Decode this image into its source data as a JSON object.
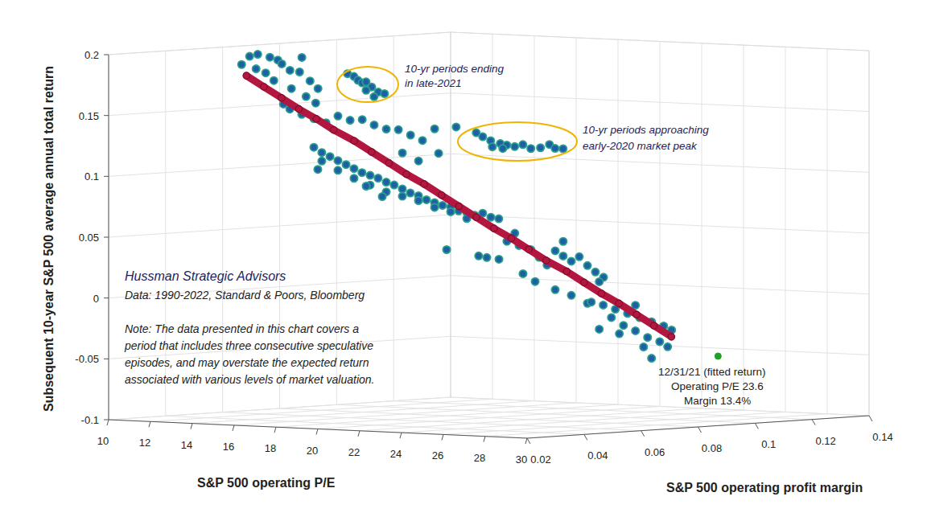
{
  "chart_data": {
    "type": "scatter3d",
    "x_label": "S&P 500 operating P/E",
    "y_label": "Subsequent 10-year S&P 500 average annual total return",
    "z_label": "S&P 500 operating profit margin",
    "xlim": [
      10,
      30
    ],
    "xticks": [
      10,
      12,
      14,
      16,
      18,
      20,
      22,
      24,
      26,
      28,
      30
    ],
    "ylim": [
      -0.1,
      0.2
    ],
    "yticks": [
      -0.1,
      -0.05,
      0,
      0.05,
      0.1,
      0.15,
      0.2
    ],
    "zlim": [
      0.02,
      0.14
    ],
    "zticks": [
      0.02,
      0.04,
      0.06,
      0.08,
      0.1,
      0.12,
      0.14
    ],
    "grid": true,
    "series": [
      {
        "type": "scatter",
        "color": "#1f5fa8",
        "marker": "circle",
        "x": [
          12.65,
          13.04,
          13.62,
          14.0,
          12.96,
          13.42,
          14.19,
          14.58,
          15.04,
          15.54,
          15.92,
          13.81,
          14.65,
          15.35,
          15.81,
          14.27,
          15.15,
          12.27,
          11.88,
          12.19,
          12.38,
          12.58,
          12.77,
          13.04,
          13.35,
          13.65,
          13.15,
          12.77,
          14.35,
          15.31,
          15.62,
          16.0,
          16.46,
          16.77,
          17.15,
          17.54,
          17.92,
          18.38,
          18.81,
          19.08,
          19.46,
          16.08,
          16.58,
          11.85,
          12.42,
          13.0,
          13.58,
          14.15,
          14.73,
          15.31,
          15.88,
          16.46,
          17.04,
          17.62,
          18.19,
          18.77,
          18.96,
          18.0,
          17.23,
          14.36,
          14.74,
          15.13,
          15.51,
          15.9,
          16.28,
          16.66,
          17.05,
          17.43,
          17.82,
          18.2,
          18.59,
          18.97,
          19.36,
          19.74,
          20.13,
          20.51,
          20.9,
          21.28,
          21.67,
          22.05,
          22.43,
          22.82,
          23.2,
          14.74,
          15.51,
          16.28,
          17.05,
          17.82,
          18.59,
          19.36,
          20.13,
          20.9,
          21.67,
          16.86,
          17.63,
          14.55,
          18.15,
          18.54,
          19.12,
          19.5,
          20.08,
          20.65,
          21.04,
          21.42,
          21.81,
          22.19,
          22.58,
          22.96,
          23.35,
          23.73,
          24.12,
          20.27,
          20.85,
          21.81,
          22.58,
          23.35,
          22.19,
          16.62,
          19.88,
          20.81,
          21.38,
          21.96,
          22.54,
          23.12,
          23.69,
          24.27,
          24.65,
          21.77,
          22.35,
          22.92,
          23.5,
          24.08,
          24.46,
          21.19,
          23.31,
          23.69,
          22.15,
          21.19,
          22.92
        ],
        "z": [
          0.05,
          0.05,
          0.05,
          0.05,
          0.05,
          0.05,
          0.05,
          0.05,
          0.05,
          0.05,
          0.05,
          0.05,
          0.05,
          0.05,
          0.05,
          0.05,
          0.05,
          0.05,
          0.09,
          0.09,
          0.09,
          0.09,
          0.09,
          0.09,
          0.09,
          0.09,
          0.09,
          0.09,
          0.11,
          0.11,
          0.11,
          0.11,
          0.11,
          0.11,
          0.11,
          0.11,
          0.11,
          0.11,
          0.11,
          0.11,
          0.11,
          0.11,
          0.11,
          0.07,
          0.07,
          0.07,
          0.07,
          0.07,
          0.07,
          0.07,
          0.07,
          0.07,
          0.07,
          0.07,
          0.07,
          0.07,
          0.07,
          0.07,
          0.07,
          0.06,
          0.06,
          0.06,
          0.06,
          0.06,
          0.06,
          0.06,
          0.06,
          0.06,
          0.06,
          0.06,
          0.06,
          0.06,
          0.06,
          0.06,
          0.06,
          0.06,
          0.06,
          0.06,
          0.06,
          0.06,
          0.06,
          0.06,
          0.06,
          0.06,
          0.06,
          0.06,
          0.06,
          0.06,
          0.06,
          0.06,
          0.06,
          0.06,
          0.06,
          0.06,
          0.06,
          0.06,
          0.09,
          0.09,
          0.09,
          0.09,
          0.09,
          0.09,
          0.09,
          0.09,
          0.09,
          0.09,
          0.09,
          0.09,
          0.09,
          0.09,
          0.09,
          0.09,
          0.09,
          0.09,
          0.09,
          0.09,
          0.09,
          0.09,
          0.09,
          0.11,
          0.11,
          0.11,
          0.11,
          0.11,
          0.11,
          0.11,
          0.11,
          0.11,
          0.11,
          0.11,
          0.11,
          0.11,
          0.11,
          0.11,
          0.11,
          0.11,
          0.11,
          0.11,
          0.11
        ],
        "values": [
          0.196,
          0.198,
          0.196,
          0.194,
          0.186,
          0.183,
          0.191,
          0.186,
          0.185,
          0.178,
          0.172,
          0.177,
          0.171,
          0.165,
          0.16,
          0.158,
          0.197,
          0.189,
          0.175,
          0.173,
          0.17,
          0.168,
          0.169,
          0.165,
          0.161,
          0.16,
          0.157,
          0.162,
          0.13,
          0.126,
          0.123,
          0.12,
          0.118,
          0.117,
          0.116,
          0.118,
          0.115,
          0.116,
          0.119,
          0.116,
          0.116,
          0.115,
          0.114,
          0.149,
          0.145,
          0.142,
          0.139,
          0.145,
          0.142,
          0.143,
          0.139,
          0.136,
          0.136,
          0.132,
          0.128,
          0.138,
          0.118,
          0.111,
          0.117,
          0.121,
          0.117,
          0.114,
          0.111,
          0.108,
          0.105,
          0.102,
          0.1,
          0.098,
          0.095,
          0.093,
          0.09,
          0.087,
          0.085,
          0.082,
          0.08,
          0.078,
          0.077,
          0.074,
          0.073,
          0.071,
          0.073,
          0.07,
          0.069,
          0.11,
          0.103,
          0.097,
          0.092,
          0.087,
          0.084,
          0.081,
          0.076,
          0.073,
          0.068,
          0.091,
          0.083,
          0.103,
          0.03,
          0.029,
          0.028,
          0.043,
          0.04,
          0.037,
          0.031,
          0.025,
          0.037,
          0.033,
          0.029,
          0.033,
          0.026,
          0.021,
          0.017,
          0.017,
          0.011,
          0.005,
          0.001,
          -0.005,
          0.045,
          0.034,
          0.05,
          -0.009,
          -0.011,
          -0.014,
          -0.017,
          -0.02,
          -0.023,
          -0.026,
          -0.029,
          -0.021,
          -0.027,
          -0.031,
          -0.036,
          -0.039,
          -0.043,
          -0.031,
          -0.044,
          -0.053,
          -0.034,
          0.008,
          -0.01
        ]
      },
      {
        "type": "line",
        "color": "#b3173f",
        "marker": "circle",
        "x": [
          12.5,
          13.06,
          13.63,
          14.19,
          14.75,
          15.31,
          15.88,
          16.44,
          17.0,
          17.56,
          18.13,
          18.69,
          19.25,
          19.81,
          20.38,
          20.94,
          21.5,
          22.06,
          22.63,
          23.19,
          23.75,
          24.31,
          24.88,
          25.44,
          26.0
        ],
        "z": [
          0.05,
          0.052,
          0.054,
          0.056,
          0.058,
          0.06,
          0.063,
          0.065,
          0.067,
          0.069,
          0.071,
          0.073,
          0.075,
          0.077,
          0.079,
          0.081,
          0.083,
          0.085,
          0.088,
          0.09,
          0.092,
          0.094,
          0.096,
          0.098,
          0.1
        ],
        "values": [
          0.18,
          0.171,
          0.162,
          0.153,
          0.145,
          0.136,
          0.127,
          0.118,
          0.109,
          0.1,
          0.092,
          0.083,
          0.074,
          0.065,
          0.056,
          0.048,
          0.039,
          0.03,
          0.021,
          0.012,
          0.003,
          -0.005,
          -0.014,
          -0.023,
          -0.032
        ]
      },
      {
        "type": "scatter",
        "color": "#22a12a",
        "marker": "circle",
        "x": [
          23.6
        ],
        "z": [
          0.134
        ],
        "values": [
          -0.055
        ]
      }
    ],
    "annotations": [
      {
        "lines": [
          "10-yr periods ending",
          "in late-2021"
        ]
      },
      {
        "lines": [
          "10-yr periods approaching",
          "early-2020 market peak"
        ]
      },
      {
        "lines": [
          "12/31/21 (fitted return)",
          "Operating P/E 23.6",
          "Margin 13.4%"
        ]
      }
    ],
    "source_note": {
      "title": "Hussman Strategic Advisors",
      "data": "Data: 1990-2022, Standard & Poors, Bloomberg",
      "lines": [
        "Note: The data presented in this chart covers a",
        "period that includes three consecutive speculative",
        "episodes, and may overstate the expected return",
        "associated with various levels of market valuation."
      ]
    }
  }
}
